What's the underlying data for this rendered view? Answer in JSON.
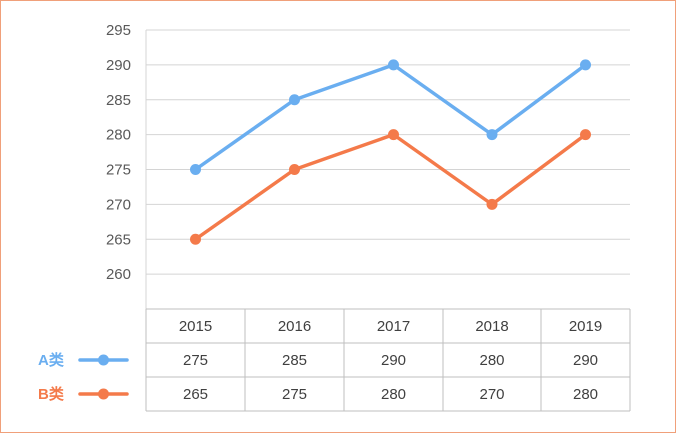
{
  "chart_data": {
    "type": "line",
    "categories": [
      "2015",
      "2016",
      "2017",
      "2018",
      "2019"
    ],
    "series": [
      {
        "name": "A类",
        "values": [
          275,
          285,
          290,
          280,
          290
        ],
        "color": "#6aaef0"
      },
      {
        "name": "B类",
        "values": [
          265,
          275,
          280,
          270,
          280
        ],
        "color": "#f47a4a"
      }
    ],
    "ylim": [
      255,
      295
    ],
    "yticks": [
      295,
      290,
      285,
      280,
      275,
      270,
      265,
      260
    ],
    "grid": true,
    "data_table": true,
    "legend": "data-table-left"
  }
}
